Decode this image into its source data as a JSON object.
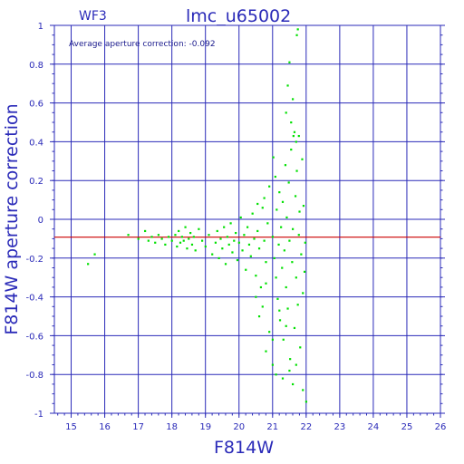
{
  "chart_data": {
    "type": "scatter",
    "title": "lmc_u65002",
    "subtitle": "WF3",
    "xlabel": "F814W",
    "ylabel": "F814W aperture correction",
    "annotation": "Average aperture correction: -0.092",
    "xlim": [
      14.5,
      26
    ],
    "ylim": [
      -1,
      1
    ],
    "xticks": [
      "15",
      "16",
      "17",
      "18",
      "19",
      "20",
      "21",
      "22",
      "23",
      "24",
      "25",
      "26"
    ],
    "yticks": [
      "-1",
      "-0.8",
      "-0.6",
      "-0.4",
      "-0.2",
      "0",
      "0.2",
      "0.4",
      "0.6",
      "0.8",
      "1"
    ],
    "grid": true,
    "reference_line": {
      "y": -0.092,
      "color": "#cc0000"
    },
    "colors": {
      "axis": "#2a2ab8",
      "grid": "#2a2ab8",
      "points": "#00e000",
      "background": "#ffffff"
    },
    "series": [
      {
        "points": [
          [
            15.5,
            -0.23
          ],
          [
            15.7,
            -0.18
          ],
          [
            16.7,
            -0.08
          ],
          [
            17.0,
            -0.1
          ],
          [
            17.2,
            -0.06
          ],
          [
            17.3,
            -0.11
          ],
          [
            17.4,
            -0.09
          ],
          [
            17.5,
            -0.12
          ],
          [
            17.6,
            -0.08
          ],
          [
            17.7,
            -0.1
          ],
          [
            17.8,
            -0.13
          ],
          [
            17.9,
            -0.09
          ],
          [
            18.0,
            -0.11
          ],
          [
            18.1,
            -0.08
          ],
          [
            18.15,
            -0.14
          ],
          [
            18.2,
            -0.06
          ],
          [
            18.25,
            -0.12
          ],
          [
            18.3,
            -0.09
          ],
          [
            18.35,
            -0.11
          ],
          [
            18.4,
            -0.04
          ],
          [
            18.45,
            -0.15
          ],
          [
            18.5,
            -0.1
          ],
          [
            18.55,
            -0.07
          ],
          [
            18.6,
            -0.13
          ],
          [
            18.65,
            -0.09
          ],
          [
            18.7,
            -0.16
          ],
          [
            18.8,
            -0.05
          ],
          [
            18.9,
            -0.11
          ],
          [
            19.0,
            -0.14
          ],
          [
            19.1,
            -0.08
          ],
          [
            19.2,
            -0.18
          ],
          [
            19.3,
            -0.12
          ],
          [
            19.35,
            -0.06
          ],
          [
            19.4,
            -0.2
          ],
          [
            19.45,
            -0.1
          ],
          [
            19.5,
            -0.15
          ],
          [
            19.55,
            -0.04
          ],
          [
            19.6,
            -0.23
          ],
          [
            19.65,
            -0.09
          ],
          [
            19.7,
            -0.13
          ],
          [
            19.75,
            -0.02
          ],
          [
            19.8,
            -0.17
          ],
          [
            19.85,
            -0.11
          ],
          [
            19.9,
            -0.07
          ],
          [
            19.95,
            -0.21
          ],
          [
            20.0,
            -0.12
          ],
          [
            20.05,
            0.01
          ],
          [
            20.1,
            -0.16
          ],
          [
            20.15,
            -0.08
          ],
          [
            20.2,
            -0.26
          ],
          [
            20.25,
            -0.04
          ],
          [
            20.3,
            -0.13
          ],
          [
            20.35,
            -0.19
          ],
          [
            20.4,
            0.03
          ],
          [
            20.45,
            -0.1
          ],
          [
            20.5,
            -0.29
          ],
          [
            20.55,
            -0.06
          ],
          [
            20.6,
            -0.15
          ],
          [
            20.65,
            -0.35
          ],
          [
            20.7,
            0.06
          ],
          [
            20.75,
            -0.11
          ],
          [
            20.8,
            -0.22
          ],
          [
            20.85,
            -0.02
          ],
          [
            20.5,
            -0.4
          ],
          [
            20.6,
            -0.5
          ],
          [
            20.7,
            -0.45
          ],
          [
            20.8,
            -0.33
          ],
          [
            20.9,
            -0.58
          ],
          [
            20.55,
            0.08
          ],
          [
            20.75,
            0.11
          ],
          [
            20.9,
            0.17
          ],
          [
            21.0,
            -0.09
          ],
          [
            21.02,
            0.32
          ],
          [
            21.05,
            -0.2
          ],
          [
            21.08,
            0.22
          ],
          [
            21.1,
            -0.3
          ],
          [
            21.12,
            0.05
          ],
          [
            21.15,
            -0.41
          ],
          [
            21.18,
            -0.13
          ],
          [
            21.2,
            0.14
          ],
          [
            21.22,
            -0.52
          ],
          [
            21.25,
            -0.04
          ],
          [
            21.28,
            -0.25
          ],
          [
            21.3,
            0.09
          ],
          [
            21.32,
            -0.62
          ],
          [
            21.35,
            -0.16
          ],
          [
            21.38,
            0.28
          ],
          [
            21.4,
            -0.35
          ],
          [
            21.42,
            0.01
          ],
          [
            21.45,
            -0.46
          ],
          [
            21.48,
            0.19
          ],
          [
            21.5,
            -0.11
          ],
          [
            21.52,
            -0.72
          ],
          [
            21.55,
            0.36
          ],
          [
            21.58,
            -0.22
          ],
          [
            21.6,
            -0.05
          ],
          [
            21.62,
            0.43
          ],
          [
            21.65,
            -0.56
          ],
          [
            21.68,
            0.12
          ],
          [
            21.7,
            -0.3
          ],
          [
            21.72,
            0.25
          ],
          [
            21.75,
            -0.44
          ],
          [
            21.78,
            -0.08
          ],
          [
            21.8,
            0.04
          ],
          [
            21.82,
            -0.66
          ],
          [
            21.85,
            -0.18
          ],
          [
            21.88,
            0.31
          ],
          [
            21.9,
            -0.38
          ],
          [
            21.92,
            0.07
          ],
          [
            21.95,
            -0.27
          ],
          [
            21.97,
            -0.12
          ],
          [
            21.4,
            0.55
          ],
          [
            21.45,
            0.69
          ],
          [
            21.5,
            0.81
          ],
          [
            21.55,
            0.5
          ],
          [
            21.6,
            0.62
          ],
          [
            21.65,
            0.45
          ],
          [
            21.7,
            0.4
          ],
          [
            21.72,
            0.95
          ],
          [
            21.75,
            0.98
          ],
          [
            21.78,
            0.43
          ],
          [
            21.3,
            -0.82
          ],
          [
            21.5,
            -0.78
          ],
          [
            21.6,
            -0.85
          ],
          [
            21.7,
            -0.75
          ],
          [
            21.0,
            -0.75
          ],
          [
            21.1,
            -0.8
          ],
          [
            20.8,
            -0.68
          ],
          [
            21.9,
            -0.88
          ],
          [
            22.0,
            -0.94
          ],
          [
            21.0,
            -0.62
          ],
          [
            21.2,
            -0.47
          ],
          [
            21.4,
            -0.55
          ]
        ]
      }
    ]
  }
}
